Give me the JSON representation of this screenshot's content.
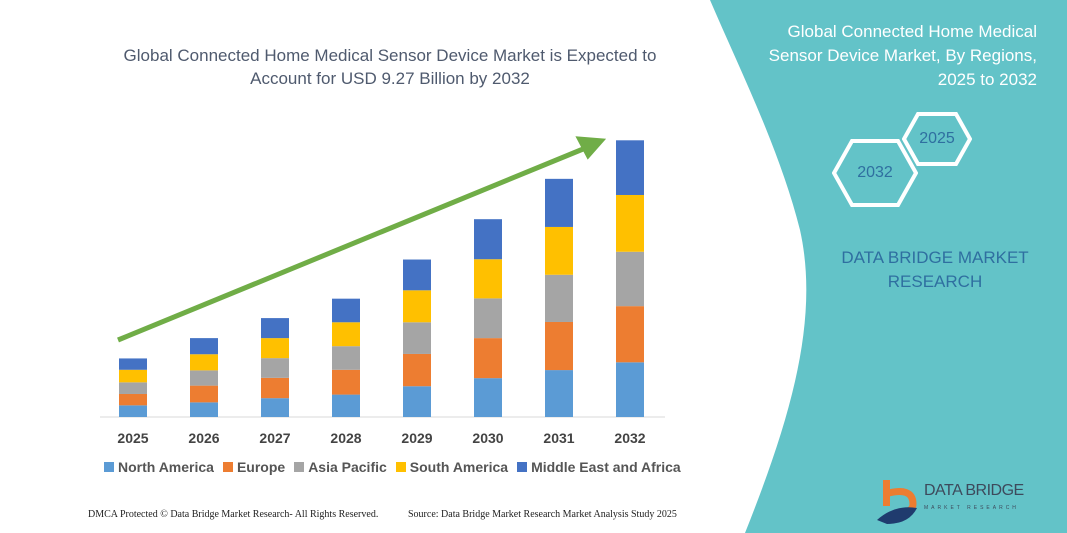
{
  "left_title": "Global Connected Home Medical Sensor Device Market is Expected to Account for USD 9.27 Billion by 2032",
  "right_panel": {
    "title": "Global Connected Home Medical Sensor Device Market, By Regions, 2025 to 2032",
    "hex_start": "2025",
    "hex_end": "2032",
    "company": "DATA BRIDGE MARKET RESEARCH",
    "logo_text": "DATA BRIDGE",
    "logo_subtext": "MARKET RESEARCH",
    "panel_color": "#63c3c8"
  },
  "footer": {
    "copyright": "DMCA Protected © Data Bridge Market Research- All Rights Reserved.",
    "source": "Source: Data Bridge Market Research Market Analysis Study 2025"
  },
  "chart_data": {
    "type": "bar",
    "stacked": true,
    "title": "Global Connected Home Medical Sensor Device Market is Expected to Account for USD 9.27 Billion by 2032",
    "categories": [
      "2025",
      "2026",
      "2027",
      "2028",
      "2029",
      "2030",
      "2031",
      "2032"
    ],
    "series": [
      {
        "name": "North America",
        "color": "#5b9bd5",
        "values": [
          0.39,
          0.49,
          0.63,
          0.75,
          1.03,
          1.3,
          1.57,
          1.83
        ]
      },
      {
        "name": "Europe",
        "color": "#ed7d31",
        "values": [
          0.38,
          0.56,
          0.68,
          0.83,
          1.08,
          1.34,
          1.61,
          1.88
        ]
      },
      {
        "name": "Asia Pacific",
        "color": "#a5a5a5",
        "values": [
          0.39,
          0.51,
          0.66,
          0.79,
          1.06,
          1.33,
          1.58,
          1.82
        ]
      },
      {
        "name": "South America",
        "color": "#ffc000",
        "values": [
          0.42,
          0.54,
          0.67,
          0.8,
          1.07,
          1.31,
          1.6,
          1.9
        ]
      },
      {
        "name": "Middle East and Africa",
        "color": "#4472c4",
        "values": [
          0.38,
          0.54,
          0.67,
          0.79,
          1.03,
          1.34,
          1.61,
          1.83
        ]
      }
    ],
    "ylim": [
      0,
      9.27
    ],
    "legend": "bottom",
    "grid": false,
    "trend_arrow_color": "#70ad47"
  }
}
